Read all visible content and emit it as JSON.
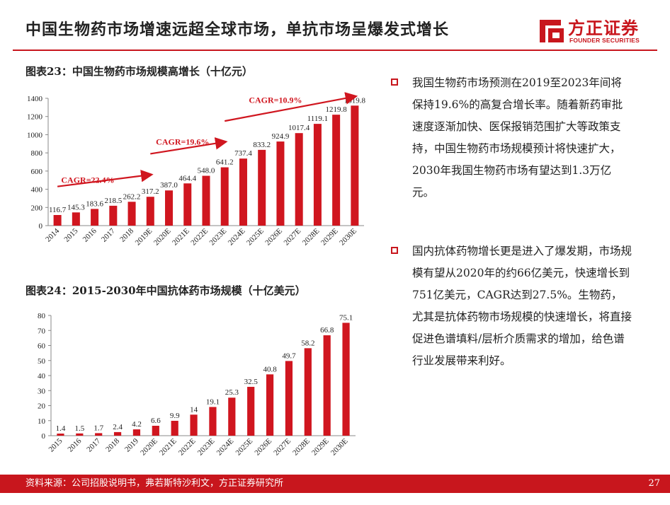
{
  "header": {
    "title": "中国生物药市场增速远超全球市场，单抗市场呈爆发式增长"
  },
  "brand": {
    "name": "方正证券",
    "sub": "FOUNDER SECURITIES",
    "color": "#c8161d"
  },
  "fig23": {
    "title": "图表23：中国生物药市场规模高增长（十亿元）"
  },
  "fig24": {
    "title": "图表24：2015-2030年中国抗体药市场规模（十亿美元）"
  },
  "bullets": [
    "我国生物药市场预测在2019至2023年间将保持19.6%的高复合增长率。随着新药审批速度逐渐加快、医保报销范围扩大等政策支持，中国生物药市场规模预计将快速扩大，2030年我国生物药市场有望达到1.3万亿元。",
    "国内抗体药物增长更是进入了爆发期，市场规模有望从2020年的约66亿美元，快速增长到751亿美元，CAGR达到27.5%。生物药，尤其是抗体药物市场规模的快速增长，将直接促进色谱填料/层析介质需求的增加，给色谱行业发展带来利好。"
  ],
  "footer": {
    "source": "资料来源：公司招股说明书，弗若斯特沙利文，方正证券研究所",
    "page": "27"
  },
  "chart_data": [
    {
      "type": "bar",
      "categories": [
        "2014",
        "2015",
        "2016",
        "2017",
        "2018",
        "2019E",
        "2020E",
        "2021E",
        "2022E",
        "2023E",
        "2024E",
        "2025E",
        "2026E",
        "2027E",
        "2028E",
        "2029E",
        "2030E"
      ],
      "values": [
        116.7,
        145.3,
        183.6,
        218.5,
        262.2,
        317.2,
        387.0,
        464.4,
        548.0,
        641.2,
        737.4,
        833.2,
        924.9,
        1017.4,
        1119.1,
        1219.8,
        1319.8
      ],
      "labels": [
        "116.7",
        "145.3",
        "183.6",
        "218.5",
        "262.2",
        "317.2",
        "387.0",
        "464.4",
        "548.0",
        "641.2",
        "737.4",
        "833.2",
        "924.9",
        "1017.4",
        "1119.1",
        "1219.8",
        "1319.8"
      ],
      "ylim": [
        0,
        1400
      ],
      "yticks": [
        0,
        200,
        400,
        600,
        800,
        1000,
        1200,
        1400
      ],
      "bar_color": "#d0161f",
      "annotations": [
        "CAGR=22.4%",
        "CAGR=19.6%",
        "CAGR=10.9%"
      ]
    },
    {
      "type": "bar",
      "categories": [
        "2015",
        "2016",
        "2017",
        "2018",
        "2019",
        "2020E",
        "2021E",
        "2022E",
        "2023E",
        "2024E",
        "2025E",
        "2026E",
        "2027E",
        "2028E",
        "2029E",
        "2030E"
      ],
      "values": [
        1.4,
        1.5,
        1.7,
        2.4,
        4.2,
        6.6,
        9.9,
        14,
        19.1,
        25.3,
        32.5,
        40.8,
        49.7,
        58.2,
        66.8,
        75.1
      ],
      "labels": [
        "1.4",
        "1.5",
        "1.7",
        "2.4",
        "4.2",
        "6.6",
        "9.9",
        "14",
        "19.1",
        "25.3",
        "32.5",
        "40.8",
        "49.7",
        "58.2",
        "66.8",
        "75.1"
      ],
      "ylim": [
        0,
        80
      ],
      "yticks": [
        0,
        10,
        20,
        30,
        40,
        50,
        60,
        70,
        80
      ],
      "bar_color": "#d0161f"
    }
  ]
}
